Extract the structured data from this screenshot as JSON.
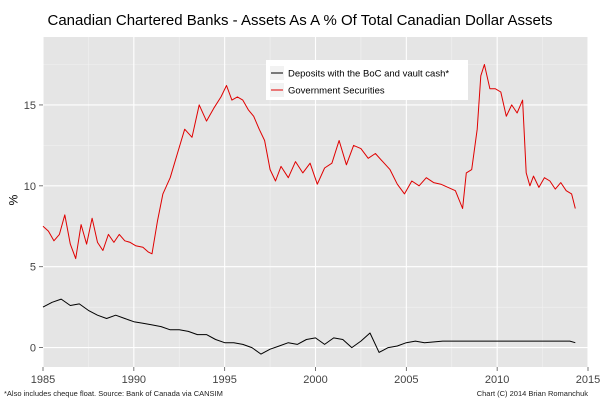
{
  "chart_data": {
    "type": "line",
    "title": "Canadian Chartered Banks - Assets As A % Of Total Canadian Dollar Assets",
    "xlabel": "",
    "ylabel": "%",
    "xlim": [
      1985,
      2015
    ],
    "ylim": [
      -1.2,
      19.2
    ],
    "x_ticks": [
      1985,
      1990,
      1995,
      2000,
      2005,
      2010,
      2015
    ],
    "x_tick_labels": [
      "1985",
      "1990",
      "1995",
      "2000",
      "2005",
      "2010",
      "2015"
    ],
    "y_ticks": [
      0,
      5,
      10,
      15
    ],
    "y_tick_labels": [
      "0",
      "5",
      "10",
      "15"
    ],
    "grid": true,
    "legend_position": "top-right",
    "series": [
      {
        "name": "Deposits with the BoC and vault cash*",
        "color": "#000000",
        "x": [
          1985.0,
          1985.5,
          1986.0,
          1986.5,
          1987.0,
          1987.5,
          1988.0,
          1988.5,
          1989.0,
          1989.5,
          1990.0,
          1990.5,
          1991.0,
          1991.5,
          1992.0,
          1992.5,
          1993.0,
          1993.5,
          1994.0,
          1994.5,
          1995.0,
          1995.5,
          1996.0,
          1996.5,
          1997.0,
          1997.5,
          1998.0,
          1998.5,
          1999.0,
          1999.5,
          2000.0,
          2000.5,
          2001.0,
          2001.5,
          2002.0,
          2002.5,
          2003.0,
          2003.5,
          2004.0,
          2004.5,
          2005.0,
          2005.5,
          2006.0,
          2007.0,
          2008.0,
          2009.0,
          2010.0,
          2011.0,
          2012.0,
          2013.0,
          2014.0,
          2014.3
        ],
        "y": [
          2.5,
          2.8,
          3.0,
          2.6,
          2.7,
          2.3,
          2.0,
          1.8,
          2.0,
          1.8,
          1.6,
          1.5,
          1.4,
          1.3,
          1.1,
          1.1,
          1.0,
          0.8,
          0.8,
          0.5,
          0.3,
          0.3,
          0.2,
          0.0,
          -0.4,
          -0.1,
          0.1,
          0.3,
          0.2,
          0.5,
          0.6,
          0.2,
          0.6,
          0.5,
          0.0,
          0.4,
          0.9,
          -0.3,
          0.0,
          0.1,
          0.3,
          0.4,
          0.3,
          0.4,
          0.4,
          0.4,
          0.4,
          0.4,
          0.4,
          0.4,
          0.4,
          0.3
        ]
      },
      {
        "name": "Government Securities",
        "color": "#e00000",
        "x": [
          1985.0,
          1985.3,
          1985.6,
          1985.9,
          1986.2,
          1986.5,
          1986.8,
          1987.1,
          1987.4,
          1987.7,
          1988.0,
          1988.3,
          1988.6,
          1988.9,
          1989.2,
          1989.5,
          1989.8,
          1990.1,
          1990.5,
          1990.8,
          1991.0,
          1991.3,
          1991.6,
          1992.0,
          1992.4,
          1992.8,
          1993.2,
          1993.6,
          1994.0,
          1994.4,
          1994.8,
          1995.1,
          1995.4,
          1995.7,
          1996.0,
          1996.3,
          1996.6,
          1996.9,
          1997.2,
          1997.5,
          1997.8,
          1998.1,
          1998.5,
          1998.9,
          1999.3,
          1999.7,
          2000.1,
          2000.5,
          2000.9,
          2001.3,
          2001.7,
          2002.1,
          2002.5,
          2002.9,
          2003.3,
          2003.7,
          2004.1,
          2004.5,
          2004.9,
          2005.3,
          2005.7,
          2006.1,
          2006.5,
          2006.9,
          2007.3,
          2007.7,
          2008.1,
          2008.3,
          2008.6,
          2008.9,
          2009.1,
          2009.3,
          2009.6,
          2009.9,
          2010.2,
          2010.5,
          2010.8,
          2011.1,
          2011.4,
          2011.6,
          2011.8,
          2012.0,
          2012.3,
          2012.6,
          2012.9,
          2013.2,
          2013.5,
          2013.8,
          2014.1,
          2014.3
        ],
        "y": [
          7.5,
          7.2,
          6.6,
          7.0,
          8.2,
          6.4,
          5.5,
          7.6,
          6.4,
          8.0,
          6.5,
          6.0,
          7.0,
          6.5,
          7.0,
          6.6,
          6.5,
          6.3,
          6.2,
          5.9,
          5.8,
          7.8,
          9.5,
          10.5,
          12.0,
          13.5,
          13.0,
          15.0,
          14.0,
          14.8,
          15.5,
          16.2,
          15.3,
          15.5,
          15.3,
          14.7,
          14.3,
          13.5,
          12.8,
          11.0,
          10.3,
          11.2,
          10.5,
          11.5,
          10.8,
          11.4,
          10.1,
          11.1,
          11.4,
          12.8,
          11.3,
          12.5,
          12.3,
          11.7,
          12.0,
          11.5,
          11.0,
          10.1,
          9.5,
          10.3,
          10.0,
          10.5,
          10.2,
          10.1,
          9.9,
          9.7,
          8.6,
          10.8,
          11.0,
          13.5,
          16.8,
          17.5,
          16.0,
          16.0,
          15.8,
          14.3,
          15.0,
          14.5,
          15.3,
          10.8,
          10.0,
          10.6,
          9.9,
          10.5,
          10.3,
          9.8,
          10.2,
          9.7,
          9.5,
          8.6
        ]
      }
    ]
  },
  "footnotes": {
    "source": "*Also includes cheque float. Source: Bank of Canada via CANSIM",
    "credit": "Chart (C) 2014 Brian Romanchuk"
  }
}
